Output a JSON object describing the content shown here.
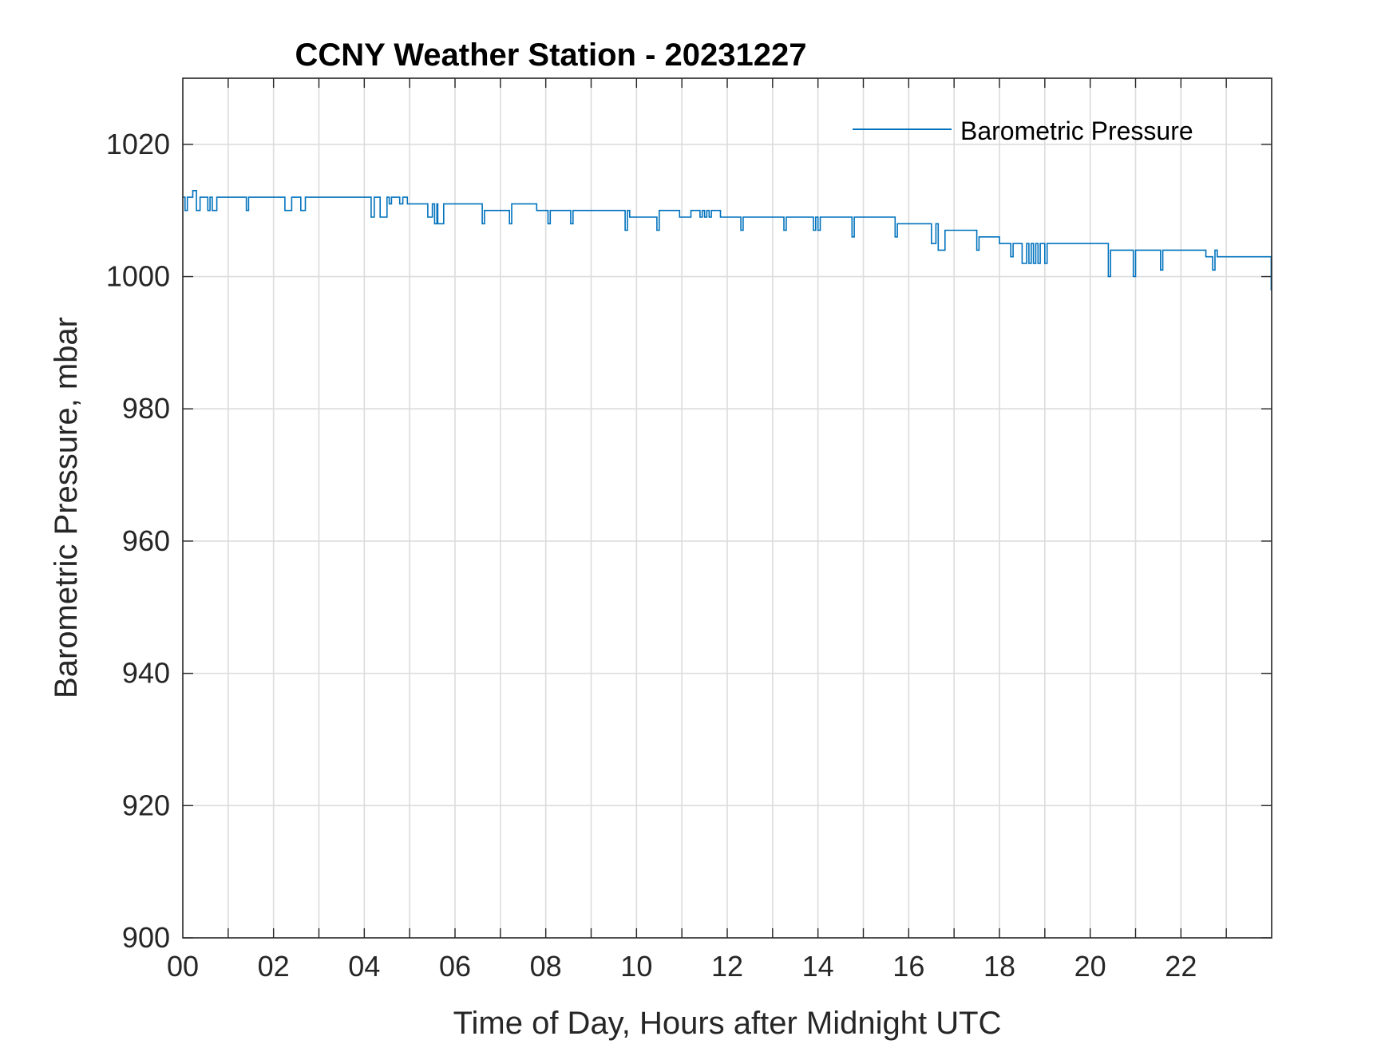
{
  "chart_data": {
    "type": "line",
    "title": "CCNY Weather Station - 20231227",
    "xlabel": "Time of Day, Hours after Midnight UTC",
    "ylabel": "Barometric Pressure, mbar",
    "xlim": [
      0,
      24
    ],
    "ylim": [
      900,
      1030
    ],
    "x_ticks": [
      0,
      2,
      4,
      6,
      8,
      10,
      12,
      14,
      16,
      18,
      20,
      22
    ],
    "x_tick_labels": [
      "00",
      "02",
      "04",
      "06",
      "08",
      "10",
      "12",
      "14",
      "16",
      "18",
      "20",
      "22"
    ],
    "x_minor_grid_step": 1,
    "y_ticks": [
      900,
      920,
      940,
      960,
      980,
      1000,
      1020
    ],
    "y_tick_labels": [
      "900",
      "920",
      "940",
      "960",
      "980",
      "1000",
      "1020"
    ],
    "grid": true,
    "legend_position": "top-right",
    "series": [
      {
        "name": "Barometric Pressure",
        "color": "#0072BD",
        "step": true,
        "x": [
          0,
          0.05,
          0.1,
          0.22,
          0.3,
          0.38,
          0.55,
          0.6,
          0.65,
          0.75,
          1.4,
          1.45,
          2.25,
          2.4,
          2.6,
          2.7,
          2.85,
          4.15,
          4.22,
          4.35,
          4.5,
          4.55,
          4.6,
          4.78,
          4.85,
          4.95,
          5.05,
          5.15,
          5.4,
          5.5,
          5.55,
          5.6,
          5.62,
          5.75,
          6.6,
          6.65,
          6.75,
          7.2,
          7.25,
          7.3,
          7.8,
          7.85,
          8.05,
          8.1,
          8.15,
          8.55,
          8.6,
          8.65,
          9.75,
          9.8,
          9.85,
          9.95,
          10.45,
          10.5,
          10.55,
          10.6,
          10.95,
          11.0,
          11.2,
          11.4,
          11.45,
          11.5,
          11.55,
          11.6,
          11.65,
          11.75,
          11.85,
          12.3,
          12.35,
          13.25,
          13.3,
          13.9,
          13.95,
          14.0,
          14.05,
          14.1,
          14.15,
          14.75,
          14.8,
          14.85,
          15.7,
          15.75,
          15.8,
          16.5,
          16.6,
          16.65,
          16.8,
          16.85,
          16.9,
          17.5,
          17.55,
          17.6,
          18.0,
          18.25,
          18.3,
          18.5,
          18.6,
          18.65,
          18.7,
          18.75,
          18.8,
          18.85,
          18.9,
          19.0,
          19.05,
          19.1,
          20.4,
          20.45,
          20.5,
          20.95,
          21.0,
          21.05,
          21.55,
          21.6,
          21.65,
          22.55,
          22.7,
          22.75,
          22.8,
          22.85,
          23.95,
          23.99
        ],
        "y": [
          1012,
          1010,
          1012,
          1013,
          1010,
          1012,
          1010,
          1012,
          1010,
          1012,
          1010,
          1012,
          1010,
          1012,
          1010,
          1012,
          1012,
          1009,
          1012,
          1009,
          1012,
          1011,
          1012,
          1011,
          1012,
          1011,
          1011,
          1011,
          1009,
          1011,
          1008,
          1011,
          1008,
          1011,
          1008,
          1010,
          1010,
          1008,
          1011,
          1011,
          1010,
          1010,
          1008,
          1010,
          1010,
          1008,
          1010,
          1010,
          1007,
          1010,
          1009,
          1009,
          1007,
          1010,
          1010,
          1010,
          1009,
          1009,
          1010,
          1009,
          1010,
          1009,
          1010,
          1009,
          1010,
          1010,
          1009,
          1007,
          1009,
          1007,
          1009,
          1007,
          1009,
          1007,
          1009,
          1009,
          1009,
          1006,
          1009,
          1009,
          1006,
          1008,
          1008,
          1005,
          1008,
          1004,
          1007,
          1007,
          1007,
          1004,
          1006,
          1006,
          1005,
          1003,
          1005,
          1002,
          1005,
          1002,
          1005,
          1002,
          1005,
          1002,
          1005,
          1002,
          1005,
          1005,
          1000,
          1004,
          1004,
          1000,
          1004,
          1004,
          1001,
          1004,
          1004,
          1003,
          1001,
          1004,
          1003,
          1003,
          1003,
          998
        ]
      }
    ]
  }
}
